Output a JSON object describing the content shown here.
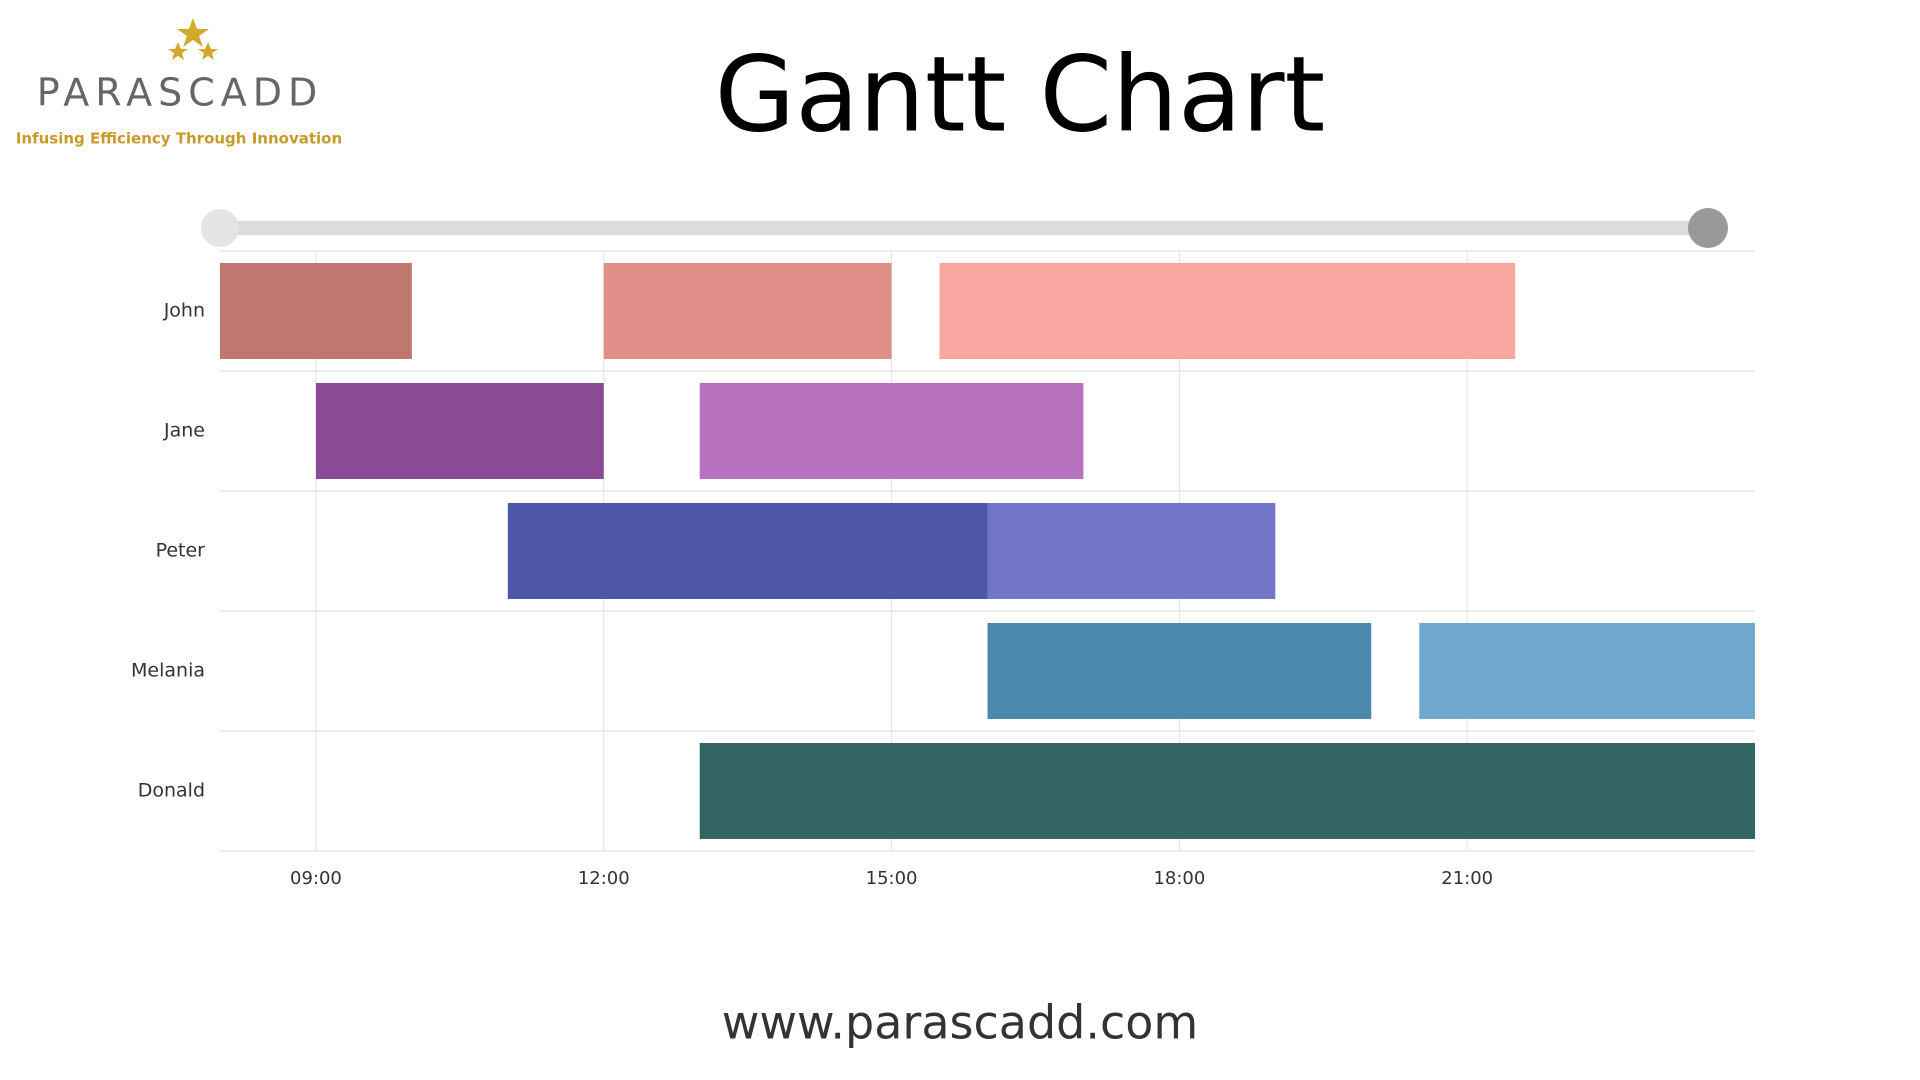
{
  "page": {
    "logo": "PARASCADD",
    "tagline": "Infusing Efficiency Through Innovation",
    "footer": "www.parascadd.com"
  },
  "chart_data": {
    "type": "gantt",
    "title": "Gantt Chart",
    "xlim": [
      8,
      24
    ],
    "xticks": [
      {
        "value": 9,
        "label": "09:00"
      },
      {
        "value": 12,
        "label": "12:00"
      },
      {
        "value": 15,
        "label": "15:00"
      },
      {
        "value": 18,
        "label": "18:00"
      },
      {
        "value": 21,
        "label": "21:00"
      }
    ],
    "grid": true,
    "series": [
      {
        "name": "John",
        "tasks": [
          {
            "start": 8,
            "end": 10,
            "color": "#c0776f"
          },
          {
            "start": 12,
            "end": 15,
            "color": "#de8f88"
          },
          {
            "start": 15.5,
            "end": 21.5,
            "color": "#f8a8a0"
          }
        ]
      },
      {
        "name": "Jane",
        "tasks": [
          {
            "start": 9,
            "end": 12,
            "color": "#8b4a96"
          },
          {
            "start": 13,
            "end": 17,
            "color": "#b873c0"
          }
        ]
      },
      {
        "name": "Peter",
        "tasks": [
          {
            "start": 11,
            "end": 16,
            "color": "#4e56a8"
          },
          {
            "start": 16,
            "end": 19,
            "color": "#7176c8"
          }
        ]
      },
      {
        "name": "Melania",
        "tasks": [
          {
            "start": 16,
            "end": 20,
            "color": "#4d88ad"
          },
          {
            "start": 20.5,
            "end": 24,
            "color": "#6ea8cc"
          }
        ]
      },
      {
        "name": "Donald",
        "tasks": [
          {
            "start": 13,
            "end": 24,
            "color": "#356563"
          }
        ]
      }
    ]
  }
}
